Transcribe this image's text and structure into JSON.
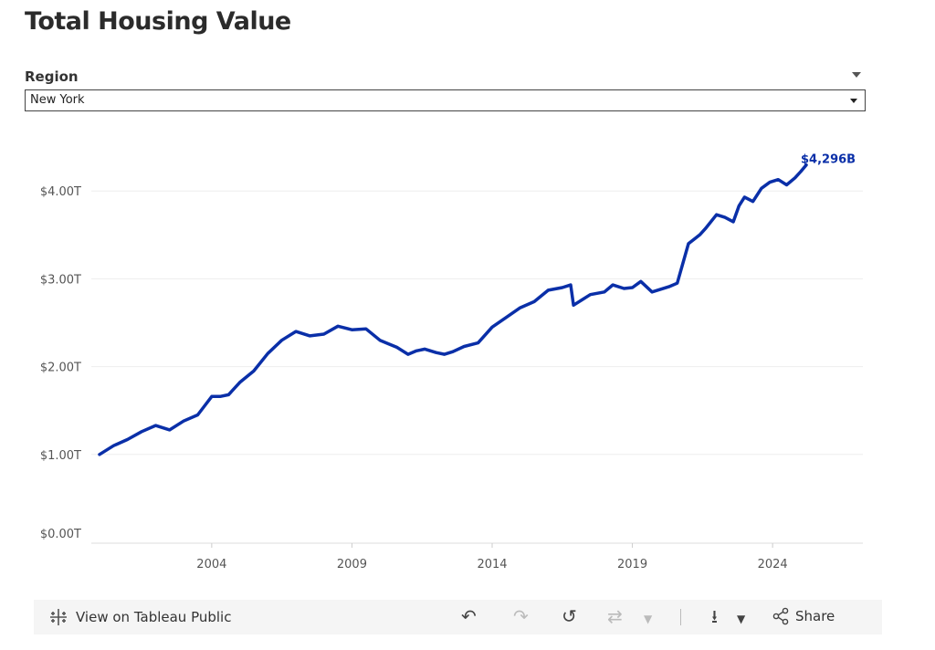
{
  "header": {
    "title": "Total Housing Value"
  },
  "filter": {
    "label": "Region",
    "selected": "New York"
  },
  "chart_data": {
    "type": "line",
    "title": "Total Housing Value",
    "xlabel": "",
    "ylabel": "",
    "x_ticks": [
      "2004",
      "2009",
      "2014",
      "2019",
      "2024"
    ],
    "y_ticks": [
      "$0.00T",
      "$1.00T",
      "$2.00T",
      "$3.00T",
      "$4.00T"
    ],
    "ylim": [
      0,
      4.3
    ],
    "xlim": [
      2000,
      2027
    ],
    "grid": true,
    "end_label": "$4,296B",
    "line_color": "#0a2fa8",
    "series": [
      {
        "x": [
          2000.0,
          2000.5,
          2001.0,
          2001.5,
          2002.0,
          2002.5,
          2003.0,
          2003.5,
          2004.0,
          2004.3,
          2004.6,
          2005.0,
          2005.5,
          2006.0,
          2006.5,
          2007.0,
          2007.5,
          2008.0,
          2008.5,
          2009.0,
          2009.5,
          2010.0,
          2010.3,
          2010.6,
          2011.0,
          2011.3,
          2011.6,
          2012.0,
          2012.3,
          2012.6,
          2013.0,
          2013.5,
          2014.0,
          2014.5,
          2015.0,
          2015.5,
          2016.0,
          2016.5,
          2016.8,
          2016.9,
          2017.2,
          2017.5,
          2018.0,
          2018.3,
          2018.7,
          2019.0,
          2019.3,
          2019.7,
          2020.0,
          2020.3,
          2020.6,
          2021.0,
          2021.2,
          2021.4,
          2021.6,
          2022.0,
          2022.3,
          2022.6,
          2022.8,
          2023.0,
          2023.3,
          2023.6,
          2023.9,
          2024.2,
          2024.5,
          2024.8,
          2025.0,
          2025.2
        ],
        "y": [
          1.0,
          1.1,
          1.17,
          1.26,
          1.33,
          1.28,
          1.38,
          1.45,
          1.66,
          1.66,
          1.68,
          1.82,
          1.95,
          2.15,
          2.3,
          2.4,
          2.35,
          2.37,
          2.46,
          2.42,
          2.43,
          2.3,
          2.26,
          2.22,
          2.14,
          2.18,
          2.2,
          2.16,
          2.14,
          2.17,
          2.23,
          2.27,
          2.45,
          2.56,
          2.67,
          2.74,
          2.87,
          2.9,
          2.93,
          2.7,
          2.76,
          2.82,
          2.85,
          2.93,
          2.89,
          2.9,
          2.97,
          2.85,
          2.88,
          2.91,
          2.95,
          3.4,
          3.45,
          3.5,
          3.57,
          3.73,
          3.7,
          3.65,
          3.83,
          3.93,
          3.88,
          4.03,
          4.1,
          4.13,
          4.07,
          4.15,
          4.22,
          4.296
        ]
      }
    ]
  },
  "footer": {
    "view_label": "View on Tableau Public",
    "share_label": "Share",
    "undo_icon": "undo-icon",
    "redo_icon": "redo-icon",
    "revert_icon": "revert-icon",
    "pause_icon": "pause-icon",
    "download_icon": "download-icon",
    "share_icon": "share-icon"
  }
}
